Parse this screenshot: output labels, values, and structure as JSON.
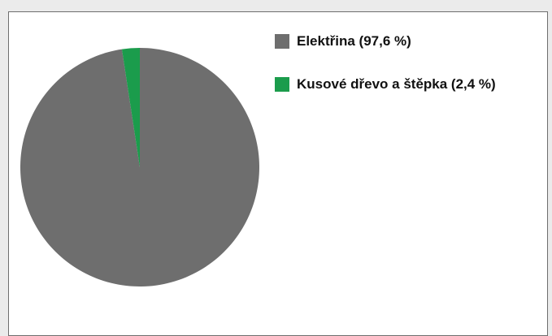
{
  "chart_data": {
    "type": "pie",
    "title": "",
    "legend_position": "top-right",
    "series": [
      {
        "values": [
          97.6,
          2.4
        ],
        "labels": [
          "Elektřina (97,6 %)",
          "Kusové dřevo a štěpka (2,4 %)"
        ],
        "colors": [
          "#6e6e6e",
          "#1b9c4c"
        ]
      }
    ],
    "slices": [
      {
        "label": "Elektřina (97,6 %)",
        "value": 97.6,
        "color": "#6e6e6e"
      },
      {
        "label": "Kusové dřevo a štěpka (2,4 %)",
        "value": 2.4,
        "color": "#1b9c4c"
      }
    ]
  }
}
